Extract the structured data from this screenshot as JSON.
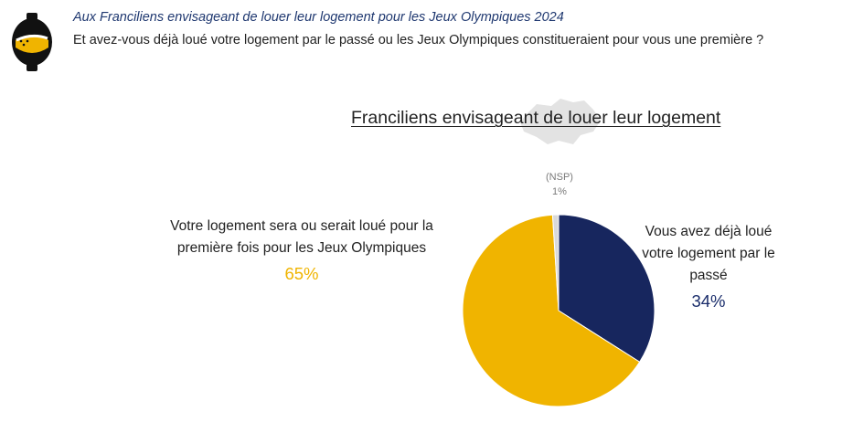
{
  "header": {
    "subtitle": "Aux Franciliens envisageant de louer leur logement pour les Jeux Olympiques 2024",
    "question": "Et avez-vous déjà loué votre logement par le passé ou les Jeux Olympiques constitueraient pour vous une première ?"
  },
  "colors": {
    "yellow": "#f0b400",
    "navy": "#17265e",
    "grey": "#d9d9d9",
    "logo_black": "#111111"
  },
  "icons": {
    "logo": "brand-logo-icon",
    "map": "ile-de-france-map-icon"
  },
  "chart_data": {
    "type": "pie",
    "title": "Franciliens envisageant de louer leur logement",
    "slices": [
      {
        "label": "Vous avez déjà loué votre logement par le passé",
        "value": 34,
        "display": "34%",
        "color": "#17265e"
      },
      {
        "label": "Votre logement sera ou serait loué pour la première fois pour les Jeux Olympiques",
        "value": 65,
        "display": "65%",
        "color": "#f0b400"
      },
      {
        "label": "(NSP)",
        "value": 1,
        "display": "1%",
        "color": "#d9d9d9"
      }
    ]
  },
  "labels": {
    "left_text": "Votre logement sera ou serait loué pour la première fois pour les Jeux Olympiques",
    "left_pct": "65%",
    "right_text": "Vous avez déjà loué votre logement par le passé",
    "right_pct": "34%",
    "nsp_text": "(NSP)",
    "nsp_pct": "1%"
  }
}
